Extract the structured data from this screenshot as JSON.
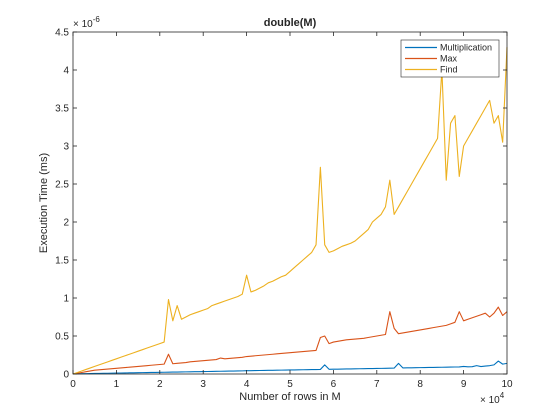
{
  "chart_data": {
    "type": "line",
    "title": "double(M)",
    "xlabel": "Number of rows in M",
    "ylabel": "Execution Time (ms)",
    "x_multiplier": {
      "base": "× 10",
      "exponent": "4"
    },
    "y_multiplier": {
      "base": "× 10",
      "exponent": "-6"
    },
    "xlim": [
      0,
      100000
    ],
    "ylim": [
      0,
      4.5e-06
    ],
    "xticks": [
      0,
      10000,
      20000,
      30000,
      40000,
      50000,
      60000,
      70000,
      80000,
      90000,
      100000
    ],
    "xtick_labels": [
      "0",
      "1",
      "2",
      "3",
      "4",
      "5",
      "6",
      "7",
      "8",
      "9",
      "10"
    ],
    "yticks": [
      0,
      5e-07,
      1e-06,
      1.5e-06,
      2e-06,
      2.5e-06,
      3e-06,
      3.5e-06,
      4e-06,
      4.5e-06
    ],
    "ytick_labels": [
      "0",
      "0.5",
      "1",
      "1.5",
      "2",
      "2.5",
      "3",
      "3.5",
      "4",
      "4.5"
    ],
    "grid": false,
    "legend_position": "top-right",
    "x": [
      0,
      1000,
      2000,
      3000,
      4000,
      5000,
      6000,
      7000,
      8000,
      9000,
      10000,
      11000,
      12000,
      13000,
      14000,
      15000,
      16000,
      17000,
      18000,
      19000,
      20000,
      21000,
      22000,
      23000,
      24000,
      25000,
      26000,
      27000,
      28000,
      29000,
      30000,
      31000,
      32000,
      33000,
      34000,
      35000,
      36000,
      37000,
      38000,
      39000,
      40000,
      41000,
      42000,
      43000,
      44000,
      45000,
      46000,
      47000,
      48000,
      49000,
      50000,
      51000,
      52000,
      53000,
      54000,
      55000,
      56000,
      57000,
      58000,
      59000,
      60000,
      61000,
      62000,
      63000,
      64000,
      65000,
      66000,
      67000,
      68000,
      69000,
      70000,
      71000,
      72000,
      73000,
      74000,
      75000,
      76000,
      77000,
      78000,
      79000,
      80000,
      81000,
      82000,
      83000,
      84000,
      85000,
      86000,
      87000,
      88000,
      89000,
      90000,
      91000,
      92000,
      93000,
      94000,
      95000,
      96000,
      97000,
      98000,
      99000,
      100000
    ],
    "series": [
      {
        "name": "Multiplication",
        "color": "#0072BD",
        "values": [
          1e-09,
          2e-09,
          4e-09,
          5e-09,
          6e-09,
          7e-09,
          8e-09,
          9e-09,
          1e-08,
          1.1e-08,
          1.2e-08,
          1.3e-08,
          1.4e-08,
          1.5e-08,
          1.6e-08,
          1.7e-08,
          1.8e-08,
          1.9e-08,
          2e-08,
          2.1e-08,
          2.2e-08,
          2.3e-08,
          2.4e-08,
          2.5e-08,
          2.6e-08,
          2.7e-08,
          2.8e-08,
          2.9e-08,
          3e-08,
          3.1e-08,
          3.2e-08,
          3.3e-08,
          3.4e-08,
          3.5e-08,
          3.6e-08,
          3.7e-08,
          3.8e-08,
          3.9e-08,
          4e-08,
          4.1e-08,
          4.3e-08,
          4.4e-08,
          4.5e-08,
          4.6e-08,
          4.7e-08,
          4.8e-08,
          4.9e-08,
          5e-08,
          5.1e-08,
          5.2e-08,
          5.3e-08,
          5.4e-08,
          5.5e-08,
          5.6e-08,
          5.7e-08,
          5.8e-08,
          5.9e-08,
          6e-08,
          1.2e-07,
          6.2e-08,
          6.3e-08,
          6.4e-08,
          6.5e-08,
          6.6e-08,
          6.7e-08,
          6.8e-08,
          6.9e-08,
          7e-08,
          7.1e-08,
          7.2e-08,
          7.3e-08,
          7.4e-08,
          7.5e-08,
          7.6e-08,
          7.8e-08,
          1.4e-07,
          8e-08,
          8.1e-08,
          8.2e-08,
          8.3e-08,
          8.4e-08,
          8.5e-08,
          8.6e-08,
          8.7e-08,
          8.8e-08,
          8.9e-08,
          9e-08,
          9.1e-08,
          9.2e-08,
          9.3e-08,
          1e-07,
          9.5e-08,
          9.6e-08,
          1.1e-07,
          9.8e-08,
          1.05e-07,
          1.1e-07,
          1.2e-07,
          1.7e-07,
          1.3e-07,
          1.4e-07
        ]
      },
      {
        "name": "Max",
        "color": "#D95319",
        "values": [
          0,
          1e-08,
          2e-08,
          3e-08,
          4e-08,
          5e-08,
          5.5e-08,
          6e-08,
          6.5e-08,
          7e-08,
          7.5e-08,
          8e-08,
          8.5e-08,
          9e-08,
          9.5e-08,
          1e-07,
          1.05e-07,
          1.1e-07,
          1.15e-07,
          1.2e-07,
          1.25e-07,
          1.3e-07,
          2.6e-07,
          1.35e-07,
          1.4e-07,
          1.45e-07,
          1.5e-07,
          1.6e-07,
          1.65e-07,
          1.7e-07,
          1.75e-07,
          1.8e-07,
          1.85e-07,
          1.9e-07,
          2.1e-07,
          2e-07,
          2.05e-07,
          2.1e-07,
          2.15e-07,
          2.2e-07,
          2.3e-07,
          2.35e-07,
          2.4e-07,
          2.45e-07,
          2.5e-07,
          2.55e-07,
          2.6e-07,
          2.65e-07,
          2.7e-07,
          2.75e-07,
          2.8e-07,
          2.85e-07,
          2.9e-07,
          2.95e-07,
          3e-07,
          3.05e-07,
          3.1e-07,
          4.8e-07,
          5e-07,
          4e-07,
          4.2e-07,
          4.3e-07,
          4.4e-07,
          4.5e-07,
          4.55e-07,
          4.6e-07,
          4.65e-07,
          4.7e-07,
          4.8e-07,
          4.9e-07,
          5e-07,
          5.1e-07,
          5.2e-07,
          8.2e-07,
          6e-07,
          5.3e-07,
          5.4e-07,
          5.5e-07,
          5.6e-07,
          5.7e-07,
          5.8e-07,
          5.9e-07,
          6e-07,
          6.1e-07,
          6.2e-07,
          6.3e-07,
          6.4e-07,
          6.6e-07,
          6.8e-07,
          8.2e-07,
          7e-07,
          7.2e-07,
          7.4e-07,
          7.6e-07,
          7.8e-07,
          8e-07,
          7.5e-07,
          8e-07,
          8.8e-07,
          7.7e-07,
          8.2e-07
        ]
      },
      {
        "name": "Find",
        "color": "#EDB120",
        "values": [
          0,
          2e-08,
          4e-08,
          6e-08,
          8e-08,
          1e-07,
          1.2e-07,
          1.4e-07,
          1.6e-07,
          1.8e-07,
          2e-07,
          2.2e-07,
          2.4e-07,
          2.6e-07,
          2.8e-07,
          3e-07,
          3.2e-07,
          3.4e-07,
          3.6e-07,
          3.8e-07,
          4e-07,
          4.2e-07,
          9.8e-07,
          7e-07,
          9e-07,
          7.2e-07,
          7.5e-07,
          7.8e-07,
          8e-07,
          8.2e-07,
          8.4e-07,
          8.6e-07,
          9e-07,
          9.2e-07,
          9.4e-07,
          9.6e-07,
          9.8e-07,
          1e-06,
          1.02e-06,
          1.05e-06,
          1.3e-06,
          1.08e-06,
          1.1e-06,
          1.13e-06,
          1.16e-06,
          1.2e-06,
          1.22e-06,
          1.25e-06,
          1.28e-06,
          1.3e-06,
          1.35e-06,
          1.4e-06,
          1.45e-06,
          1.5e-06,
          1.55e-06,
          1.6e-06,
          1.7e-06,
          2.72e-06,
          1.7e-06,
          1.6e-06,
          1.62e-06,
          1.65e-06,
          1.68e-06,
          1.7e-06,
          1.72e-06,
          1.75e-06,
          1.8e-06,
          1.85e-06,
          1.9e-06,
          2e-06,
          2.05e-06,
          2.1e-06,
          2.2e-06,
          2.55e-06,
          2.1e-06,
          2.2e-06,
          2.3e-06,
          2.4e-06,
          2.5e-06,
          2.6e-06,
          2.7e-06,
          2.8e-06,
          2.9e-06,
          3e-06,
          3.1e-06,
          4e-06,
          2.55e-06,
          3.3e-06,
          3.4e-06,
          2.6e-06,
          3e-06,
          3.1e-06,
          3.2e-06,
          3.3e-06,
          3.4e-06,
          3.5e-06,
          3.6e-06,
          3.3e-06,
          3.4e-06,
          3.05e-06,
          4.3e-06
        ]
      }
    ]
  }
}
